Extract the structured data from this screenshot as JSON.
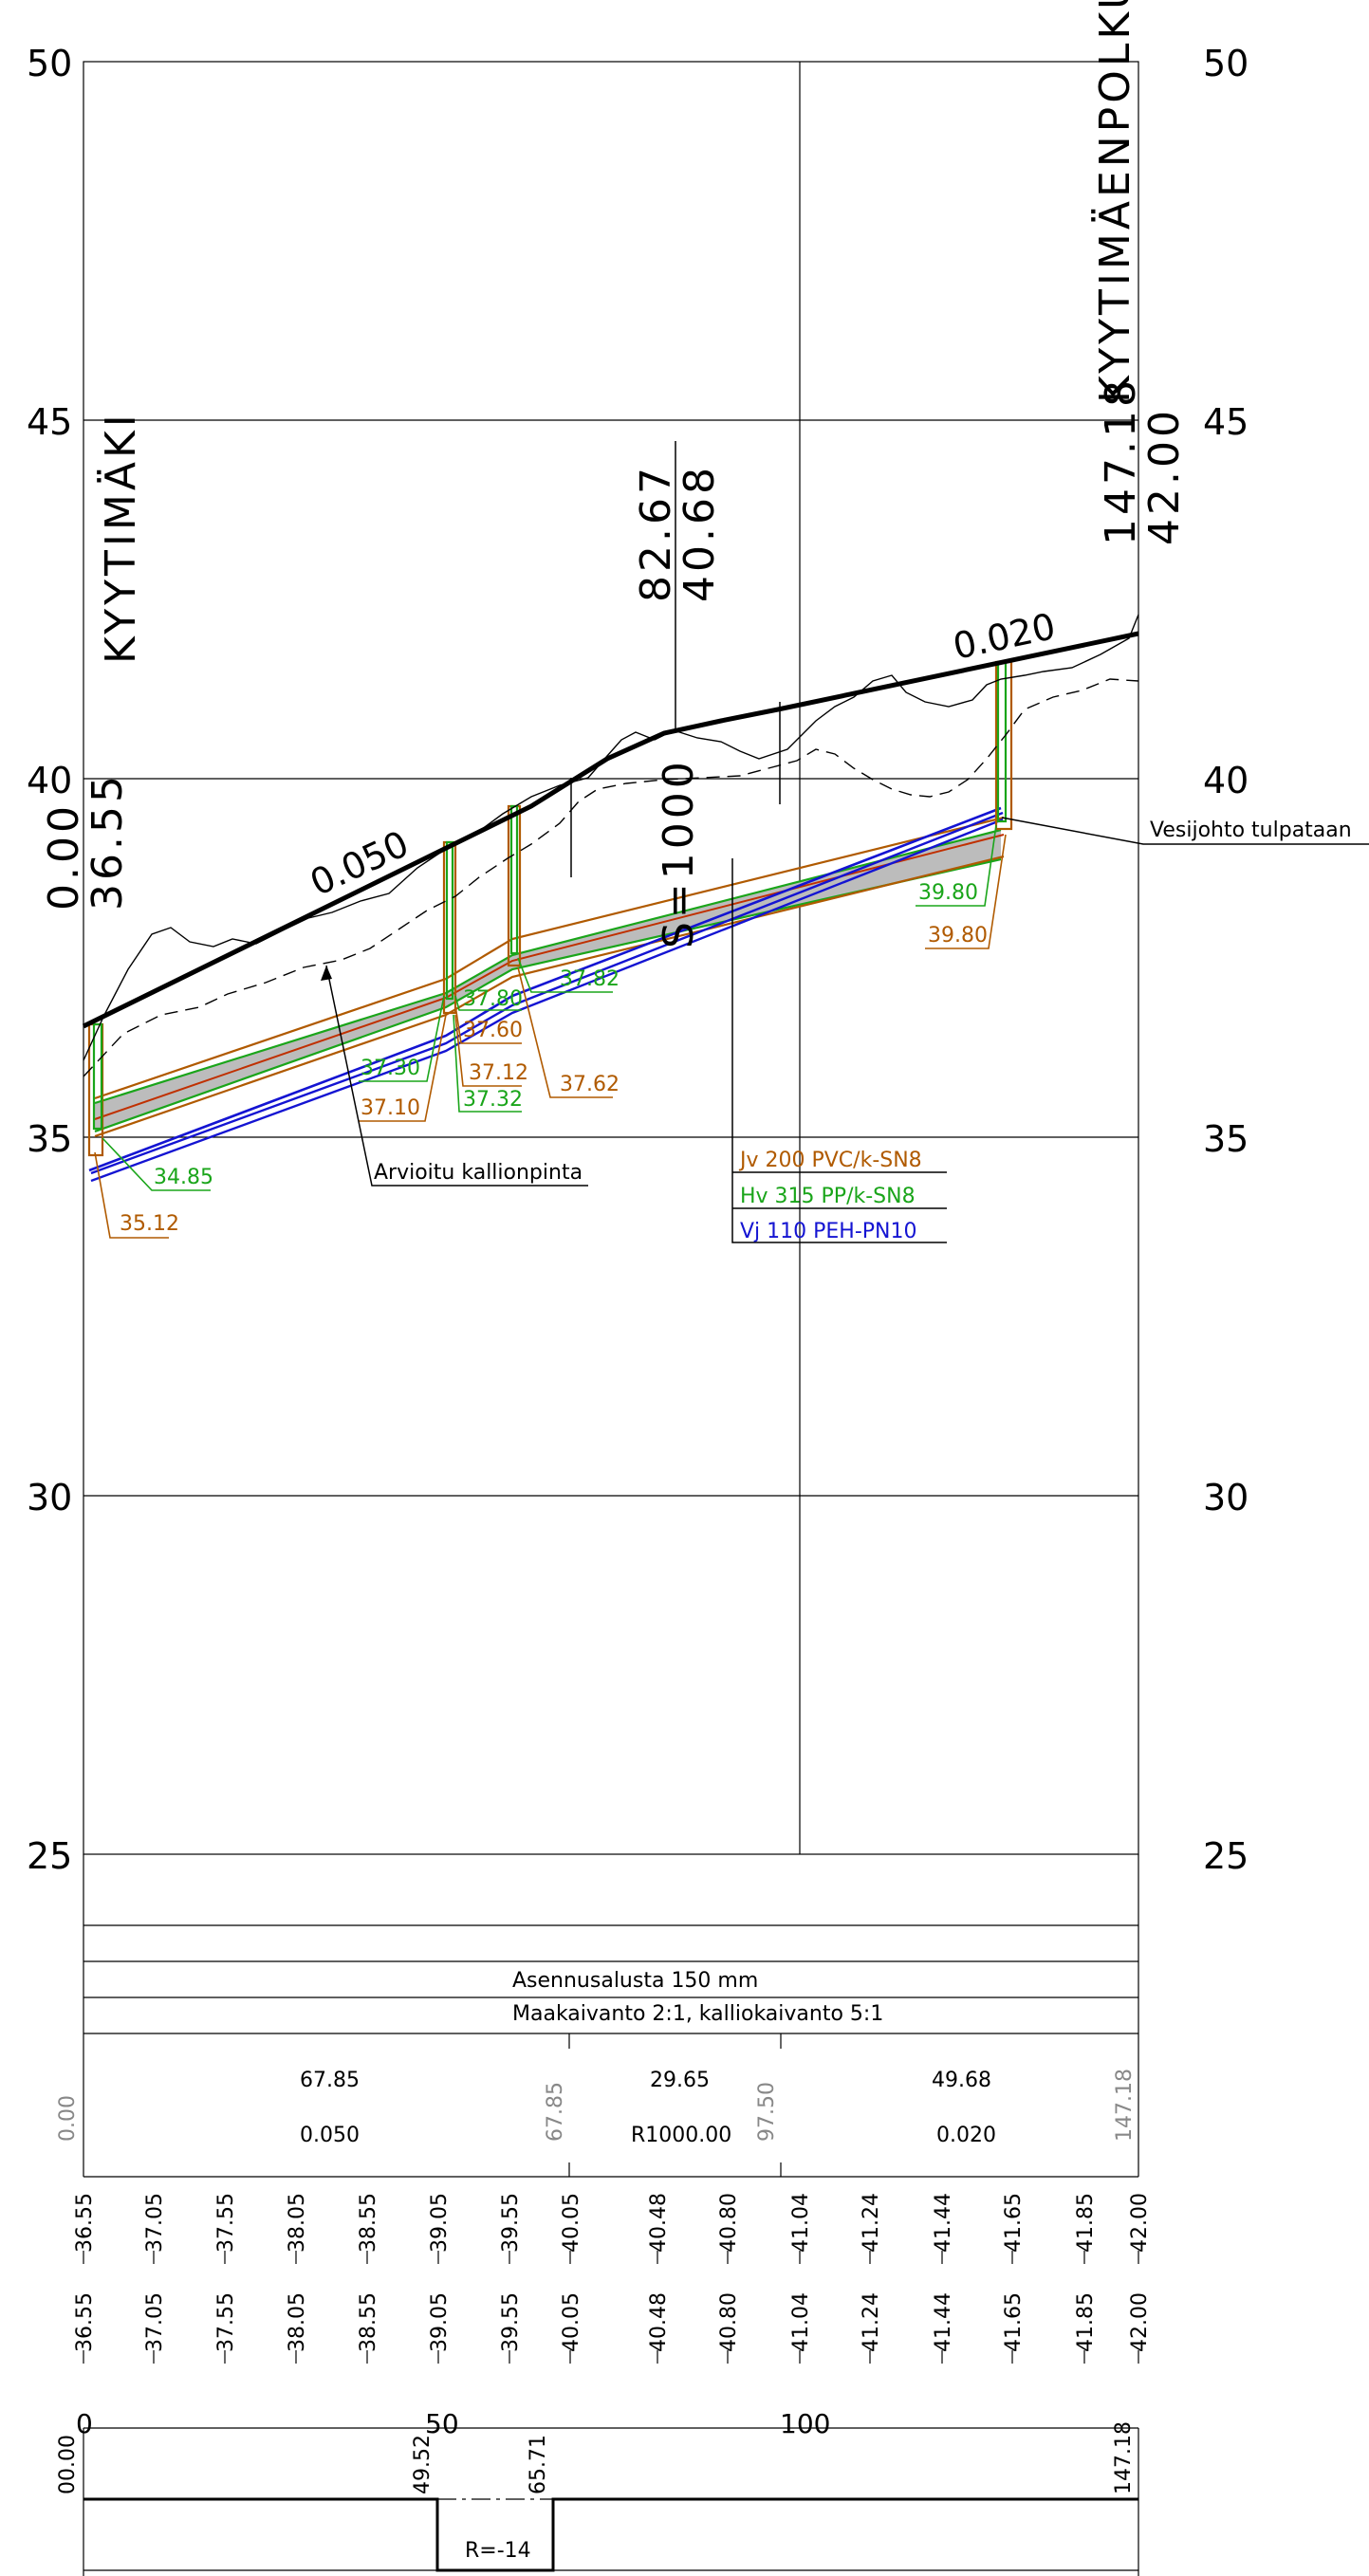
{
  "elevation_axis": {
    "ticks": [
      "50",
      "45",
      "40",
      "35",
      "30",
      "25"
    ]
  },
  "station_axis": {
    "ticks": [
      "0",
      "50",
      "100"
    ]
  },
  "endpoints": {
    "start_name": "KYYTIMÄKI",
    "start_station": "0.00",
    "start_level": "36.55",
    "end_name": "KYYTIMÄENPOLKU",
    "end_station": "147.18",
    "end_level": "42.00"
  },
  "breakpoint": {
    "station": "82.67",
    "level": "40.68",
    "radius": "S=1000"
  },
  "slopes": {
    "first": "0.050",
    "second": "0.020"
  },
  "levels": {
    "start_green": "34.85",
    "start_brown": "35.12",
    "mid1_green_a": "37.30",
    "mid1_brown_a": "37.10",
    "mid1_green_b": "37.80",
    "mid1_brown_b": "37.60",
    "mid1_brown_c": "37.12",
    "mid1_green_c": "37.32",
    "mid2_green": "37.82",
    "mid2_brown": "37.62",
    "end_green": "39.80",
    "end_brown": "39.80"
  },
  "annotations": {
    "rock": "Arvioitu kallionpinta",
    "water_end": "Vesijohto tulpataan"
  },
  "legend": {
    "jv": "Jv 200 PVC/k-SN8",
    "hv": "Hv 315 PP/k-SN8",
    "vj": "Vj 110 PEH-PN10"
  },
  "table": {
    "row_base": "Asennusalusta 150 mm",
    "row_excavation": "Maakaivanto 2:1,  kalliokaivanto 5:1",
    "segments": [
      {
        "length": "67.85",
        "grade": "0.050"
      },
      {
        "length": "29.65",
        "grade": "R1000.00"
      },
      {
        "length": "49.68",
        "grade": "0.020"
      }
    ],
    "marks": [
      "0.00",
      "67.85",
      "97.50",
      "147.18"
    ]
  },
  "level_rows": {
    "row1": [
      "36.55",
      "37.05",
      "37.55",
      "38.05",
      "38.55",
      "39.05",
      "39.55",
      "40.05",
      "40.48",
      "40.80",
      "41.04",
      "41.24",
      "41.44",
      "41.65",
      "41.85",
      "42.00"
    ],
    "row2": [
      "36.55",
      "37.05",
      "37.55",
      "38.05",
      "38.55",
      "39.05",
      "39.55",
      "40.05",
      "40.48",
      "40.80",
      "41.04",
      "41.24",
      "41.44",
      "41.65",
      "41.85",
      "42.00"
    ]
  },
  "curvature": {
    "marks": [
      "00.00",
      "49.52",
      "65.71",
      "147.18"
    ],
    "radius": "R=-14"
  }
}
